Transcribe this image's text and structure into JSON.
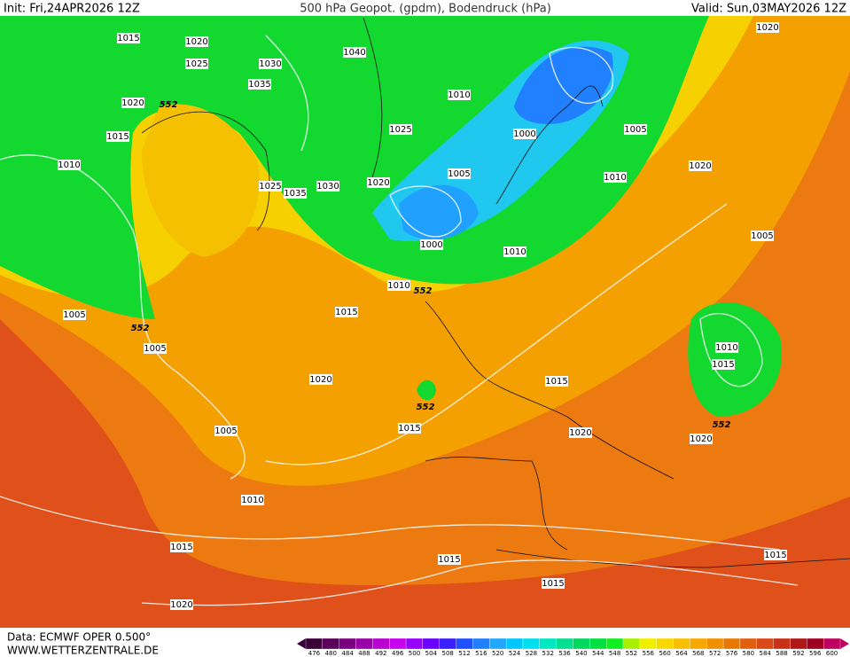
{
  "header": {
    "init": "Init: Fri,24APR2026 12Z",
    "title": "500 hPa Geopot. (gpdm), Bodendruck (hPa)",
    "valid": "Valid: Sun,03MAY2026 12Z"
  },
  "footer": {
    "source": "Data: ECMWF OPER 0.500°",
    "site": "WWW.WETTERZENTRALE.DE"
  },
  "isobars": {
    "labels": [
      1015,
      1020,
      1025,
      1030,
      1040,
      1035,
      1020,
      552,
      1015,
      1010,
      1025,
      1000,
      1005,
      1010,
      1020,
      1005,
      1010,
      1025,
      1035,
      1030,
      1020,
      1000,
      1010,
      1005,
      1010,
      552,
      1015,
      1005,
      552,
      1005,
      1010,
      1015,
      1020,
      1015,
      552,
      1015,
      1005,
      1020,
      552,
      1020,
      1010,
      1015,
      1015,
      1015,
      1015,
      1020,
      1020
    ]
  },
  "colorbar": {
    "labels": [
      476,
      480,
      484,
      488,
      492,
      496,
      500,
      504,
      508,
      512,
      516,
      520,
      524,
      528,
      532,
      536,
      540,
      544,
      548,
      552,
      556,
      560,
      564,
      568,
      572,
      576,
      580,
      584,
      588,
      592,
      596,
      600
    ],
    "colors": [
      "#3a0038",
      "#5a005a",
      "#7a0080",
      "#9a00a8",
      "#b800d0",
      "#c800f0",
      "#9a00ff",
      "#6a00ff",
      "#3a20ff",
      "#2050ff",
      "#2080ff",
      "#20a8ff",
      "#00c8ff",
      "#00e0f0",
      "#00e8c0",
      "#00e090",
      "#00d860",
      "#00e040",
      "#10f020",
      "#a8f000",
      "#f0f000",
      "#f8d800",
      "#f8c000",
      "#f8a800",
      "#f09000",
      "#e87800",
      "#e06010",
      "#d84818",
      "#c83018",
      "#b01818",
      "#a00020",
      "#c00060"
    ]
  }
}
